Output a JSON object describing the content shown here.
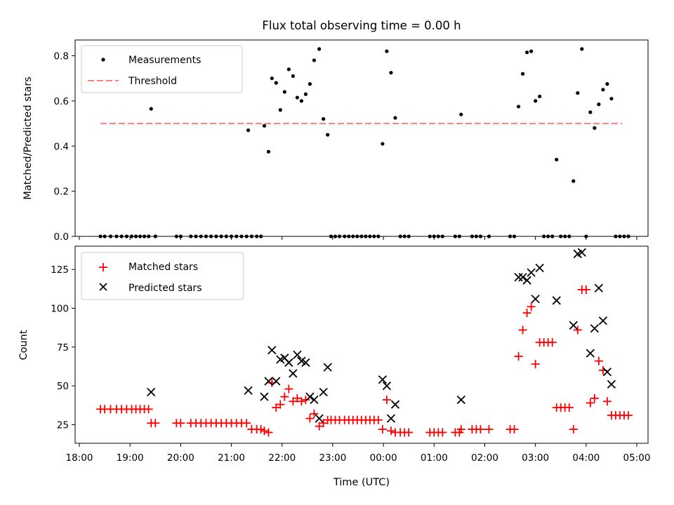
{
  "chart_data": [
    {
      "type": "scatter",
      "title": "Flux total observing time = 0.00 h",
      "xlabel": "",
      "ylabel": "Matched/Predicted stars",
      "xlim": [
        "18:00",
        "05:00"
      ],
      "ylim": [
        0,
        0.87
      ],
      "yticks": [
        "0.0",
        "0.2",
        "0.4",
        "0.6",
        "0.8"
      ],
      "grid": false,
      "legend_position": "upper-left",
      "legend": [
        "Measurements",
        "Threshold"
      ],
      "threshold": {
        "name": "Threshold",
        "y": 0.5,
        "x_start": "18:25",
        "x_end": "04:43",
        "style": "dashed",
        "color": "#ff7f7f"
      },
      "series": [
        {
          "name": "Measurements",
          "marker": "dot",
          "color": "#000000",
          "points": [
            [
              "18:25",
              0
            ],
            [
              "18:30",
              0
            ],
            [
              "18:37",
              0
            ],
            [
              "18:44",
              0
            ],
            [
              "18:50",
              0
            ],
            [
              "18:56",
              0
            ],
            [
              "19:02",
              0
            ],
            [
              "19:07",
              0
            ],
            [
              "19:12",
              0
            ],
            [
              "19:17",
              0
            ],
            [
              "19:22",
              0
            ],
            [
              "19:25",
              0.565
            ],
            [
              "19:30",
              0
            ],
            [
              "19:55",
              0
            ],
            [
              "20:00",
              0
            ],
            [
              "20:12",
              0
            ],
            [
              "20:18",
              0
            ],
            [
              "20:24",
              0
            ],
            [
              "20:30",
              0
            ],
            [
              "20:36",
              0
            ],
            [
              "20:42",
              0
            ],
            [
              "20:48",
              0
            ],
            [
              "20:54",
              0
            ],
            [
              "21:00",
              0
            ],
            [
              "21:06",
              0
            ],
            [
              "21:12",
              0
            ],
            [
              "21:18",
              0
            ],
            [
              "21:24",
              0
            ],
            [
              "21:20",
              0.47
            ],
            [
              "21:30",
              0
            ],
            [
              "21:35",
              0
            ],
            [
              "21:39",
              0.49
            ],
            [
              "21:44",
              0.375
            ],
            [
              "21:48",
              0.7
            ],
            [
              "21:53",
              0.68
            ],
            [
              "21:58",
              0.56
            ],
            [
              "22:03",
              0.64
            ],
            [
              "22:08",
              0.74
            ],
            [
              "22:13",
              0.71
            ],
            [
              "22:18",
              0.615
            ],
            [
              "22:23",
              0.6
            ],
            [
              "22:28",
              0.63
            ],
            [
              "22:33",
              0.675
            ],
            [
              "22:38",
              0.78
            ],
            [
              "22:44",
              0.83
            ],
            [
              "22:49",
              0.52
            ],
            [
              "22:54",
              0.45
            ],
            [
              "22:58",
              0
            ],
            [
              "23:03",
              0
            ],
            [
              "23:08",
              0
            ],
            [
              "23:14",
              0
            ],
            [
              "23:19",
              0
            ],
            [
              "23:24",
              0
            ],
            [
              "23:29",
              0
            ],
            [
              "23:34",
              0
            ],
            [
              "23:39",
              0
            ],
            [
              "23:44",
              0
            ],
            [
              "23:49",
              0
            ],
            [
              "23:54",
              0
            ],
            [
              "23:59",
              0.41
            ],
            [
              "00:04",
              0.82
            ],
            [
              "00:09",
              0.725
            ],
            [
              "00:14",
              0.525
            ],
            [
              "00:20",
              0
            ],
            [
              "00:25",
              0
            ],
            [
              "00:30",
              0
            ],
            [
              "00:55",
              0
            ],
            [
              "01:00",
              0
            ],
            [
              "01:05",
              0
            ],
            [
              "01:10",
              0
            ],
            [
              "01:25",
              0
            ],
            [
              "01:30",
              0
            ],
            [
              "01:32",
              0.54
            ],
            [
              "01:45",
              0
            ],
            [
              "01:50",
              0
            ],
            [
              "01:55",
              0
            ],
            [
              "02:05",
              0
            ],
            [
              "02:30",
              0
            ],
            [
              "02:35",
              0
            ],
            [
              "02:40",
              0.575
            ],
            [
              "02:45",
              0.72
            ],
            [
              "02:50",
              0.815
            ],
            [
              "02:55",
              0.82
            ],
            [
              "03:00",
              0.6
            ],
            [
              "03:05",
              0.62
            ],
            [
              "03:10",
              0
            ],
            [
              "03:15",
              0
            ],
            [
              "03:20",
              0
            ],
            [
              "03:25",
              0.34
            ],
            [
              "03:30",
              0
            ],
            [
              "03:35",
              0
            ],
            [
              "03:40",
              0
            ],
            [
              "03:45",
              0.245
            ],
            [
              "03:50",
              0.635
            ],
            [
              "03:55",
              0.83
            ],
            [
              "04:00",
              0
            ],
            [
              "04:05",
              0.55
            ],
            [
              "04:10",
              0.48
            ],
            [
              "04:15",
              0.585
            ],
            [
              "04:20",
              0.65
            ],
            [
              "04:25",
              0.675
            ],
            [
              "04:30",
              0.61
            ],
            [
              "04:35",
              0
            ],
            [
              "04:40",
              0
            ],
            [
              "04:45",
              0
            ],
            [
              "04:50",
              0
            ]
          ]
        }
      ]
    },
    {
      "type": "scatter",
      "title": "",
      "xlabel": "Time (UTC)",
      "ylabel": "Count",
      "xlim": [
        "18:00",
        "05:00"
      ],
      "ylim": [
        13,
        140
      ],
      "xticks": [
        "18:00",
        "19:00",
        "20:00",
        "21:00",
        "22:00",
        "23:00",
        "00:00",
        "01:00",
        "02:00",
        "03:00",
        "04:00",
        "05:00"
      ],
      "yticks": [
        "25",
        "50",
        "75",
        "100",
        "125"
      ],
      "grid": false,
      "legend_position": "upper-left",
      "legend": [
        "Matched stars",
        "Predicted stars"
      ],
      "series": [
        {
          "name": "Matched stars",
          "marker": "plus",
          "color": "#ff0000",
          "points": [
            [
              "18:25",
              35
            ],
            [
              "18:30",
              35
            ],
            [
              "18:37",
              35
            ],
            [
              "18:44",
              35
            ],
            [
              "18:50",
              35
            ],
            [
              "18:56",
              35
            ],
            [
              "19:02",
              35
            ],
            [
              "19:07",
              35
            ],
            [
              "19:12",
              35
            ],
            [
              "19:17",
              35
            ],
            [
              "19:22",
              35
            ],
            [
              "19:25",
              26
            ],
            [
              "19:30",
              26
            ],
            [
              "19:55",
              26
            ],
            [
              "20:00",
              26
            ],
            [
              "20:12",
              26
            ],
            [
              "20:18",
              26
            ],
            [
              "20:24",
              26
            ],
            [
              "20:30",
              26
            ],
            [
              "20:36",
              26
            ],
            [
              "20:42",
              26
            ],
            [
              "20:48",
              26
            ],
            [
              "20:54",
              26
            ],
            [
              "21:00",
              26
            ],
            [
              "21:06",
              26
            ],
            [
              "21:12",
              26
            ],
            [
              "21:18",
              26
            ],
            [
              "21:24",
              22
            ],
            [
              "21:30",
              22
            ],
            [
              "21:35",
              22
            ],
            [
              "21:39",
              21
            ],
            [
              "21:44",
              20
            ],
            [
              "21:48",
              52
            ],
            [
              "21:53",
              36
            ],
            [
              "21:58",
              38
            ],
            [
              "22:03",
              43
            ],
            [
              "22:08",
              48
            ],
            [
              "22:13",
              40
            ],
            [
              "22:18",
              42
            ],
            [
              "22:23",
              40
            ],
            [
              "22:28",
              41
            ],
            [
              "22:33",
              29
            ],
            [
              "22:38",
              32
            ],
            [
              "22:44",
              24
            ],
            [
              "22:49",
              26
            ],
            [
              "22:54",
              28
            ],
            [
              "22:58",
              28
            ],
            [
              "23:03",
              28
            ],
            [
              "23:08",
              28
            ],
            [
              "23:14",
              28
            ],
            [
              "23:19",
              28
            ],
            [
              "23:24",
              28
            ],
            [
              "23:29",
              28
            ],
            [
              "23:34",
              28
            ],
            [
              "23:39",
              28
            ],
            [
              "23:44",
              28
            ],
            [
              "23:49",
              28
            ],
            [
              "23:54",
              28
            ],
            [
              "23:59",
              22
            ],
            [
              "00:04",
              41
            ],
            [
              "00:09",
              21
            ],
            [
              "00:14",
              20
            ],
            [
              "00:20",
              20
            ],
            [
              "00:25",
              20
            ],
            [
              "00:30",
              20
            ],
            [
              "00:55",
              20
            ],
            [
              "01:00",
              20
            ],
            [
              "01:05",
              20
            ],
            [
              "01:10",
              20
            ],
            [
              "01:25",
              20
            ],
            [
              "01:30",
              20
            ],
            [
              "01:32",
              22
            ],
            [
              "01:45",
              22
            ],
            [
              "01:50",
              22
            ],
            [
              "01:55",
              22
            ],
            [
              "02:05",
              22
            ],
            [
              "02:30",
              22
            ],
            [
              "02:35",
              22
            ],
            [
              "02:40",
              69
            ],
            [
              "02:45",
              86
            ],
            [
              "02:50",
              97
            ],
            [
              "02:55",
              101
            ],
            [
              "03:00",
              64
            ],
            [
              "03:05",
              78
            ],
            [
              "03:10",
              78
            ],
            [
              "03:15",
              78
            ],
            [
              "03:20",
              78
            ],
            [
              "03:25",
              36
            ],
            [
              "03:30",
              36
            ],
            [
              "03:35",
              36
            ],
            [
              "03:40",
              36
            ],
            [
              "03:45",
              22
            ],
            [
              "03:50",
              86
            ],
            [
              "03:55",
              112
            ],
            [
              "04:00",
              112
            ],
            [
              "04:05",
              39
            ],
            [
              "04:10",
              42
            ],
            [
              "04:15",
              66
            ],
            [
              "04:20",
              60
            ],
            [
              "04:25",
              40
            ],
            [
              "04:30",
              31
            ],
            [
              "04:35",
              31
            ],
            [
              "04:40",
              31
            ],
            [
              "04:45",
              31
            ],
            [
              "04:50",
              31
            ]
          ]
        },
        {
          "name": "Predicted stars",
          "marker": "x",
          "color": "#000000",
          "points": [
            [
              "19:25",
              46
            ],
            [
              "21:20",
              47
            ],
            [
              "21:39",
              43
            ],
            [
              "21:44",
              53
            ],
            [
              "21:48",
              73
            ],
            [
              "21:53",
              53
            ],
            [
              "21:58",
              67
            ],
            [
              "22:03",
              68
            ],
            [
              "22:08",
              65
            ],
            [
              "22:13",
              58
            ],
            [
              "22:18",
              70
            ],
            [
              "22:23",
              66
            ],
            [
              "22:28",
              65
            ],
            [
              "22:33",
              43
            ],
            [
              "22:38",
              41
            ],
            [
              "22:44",
              29
            ],
            [
              "22:49",
              46
            ],
            [
              "22:54",
              62
            ],
            [
              "23:59",
              54
            ],
            [
              "00:04",
              50
            ],
            [
              "00:09",
              29
            ],
            [
              "00:14",
              38
            ],
            [
              "01:32",
              41
            ],
            [
              "02:40",
              120
            ],
            [
              "02:45",
              120
            ],
            [
              "02:50",
              118
            ],
            [
              "02:55",
              123
            ],
            [
              "03:00",
              106
            ],
            [
              "03:05",
              126
            ],
            [
              "03:25",
              105
            ],
            [
              "03:45",
              89
            ],
            [
              "03:50",
              135
            ],
            [
              "03:55",
              136
            ],
            [
              "04:05",
              71
            ],
            [
              "04:10",
              87
            ],
            [
              "04:15",
              113
            ],
            [
              "04:20",
              92
            ],
            [
              "04:25",
              59
            ],
            [
              "04:30",
              51
            ]
          ]
        }
      ]
    }
  ]
}
